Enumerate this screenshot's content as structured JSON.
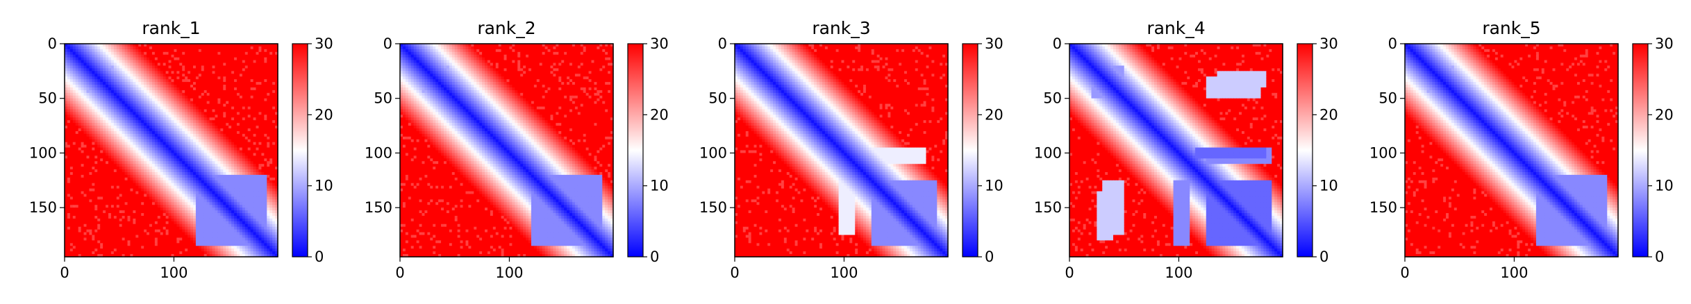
{
  "chart_data": [
    {
      "type": "heatmap",
      "title": "rank_1",
      "x_ticks": [
        0,
        100
      ],
      "y_ticks": [
        0,
        50,
        100,
        150
      ],
      "xlim": [
        0,
        195
      ],
      "ylim": [
        195,
        0
      ],
      "colorbar": {
        "ticks": [
          0,
          10,
          20,
          30
        ],
        "range": [
          0,
          30
        ],
        "colormap": "bwr"
      },
      "features": {
        "diagonal": true,
        "blocks": [
          [
            20,
            45,
            20,
            45,
            10
          ],
          [
            120,
            185,
            125,
            185,
            8
          ]
        ],
        "bands": []
      }
    },
    {
      "type": "heatmap",
      "title": "rank_2",
      "x_ticks": [
        0,
        100
      ],
      "y_ticks": [
        0,
        50,
        100,
        150
      ],
      "xlim": [
        0,
        195
      ],
      "ylim": [
        195,
        0
      ],
      "colorbar": {
        "ticks": [
          0,
          10,
          20,
          30
        ],
        "range": [
          0,
          30
        ],
        "colormap": "bwr"
      },
      "features": {
        "diagonal": true,
        "blocks": [
          [
            20,
            45,
            20,
            45,
            10
          ],
          [
            120,
            185,
            125,
            185,
            8
          ]
        ],
        "bands": []
      }
    },
    {
      "type": "heatmap",
      "title": "rank_3",
      "x_ticks": [
        0,
        100
      ],
      "y_ticks": [
        0,
        50,
        100,
        150
      ],
      "xlim": [
        0,
        195
      ],
      "ylim": [
        195,
        0
      ],
      "colorbar": {
        "ticks": [
          0,
          10,
          20,
          30
        ],
        "range": [
          0,
          30
        ],
        "colormap": "bwr"
      },
      "features": {
        "diagonal": true,
        "blocks": [
          [
            25,
            45,
            25,
            45,
            11
          ],
          [
            125,
            185,
            125,
            185,
            8
          ],
          [
            95,
            110,
            125,
            175,
            14
          ]
        ],
        "bands": []
      }
    },
    {
      "type": "heatmap",
      "title": "rank_4",
      "x_ticks": [
        0,
        100
      ],
      "y_ticks": [
        0,
        50,
        100,
        150
      ],
      "xlim": [
        0,
        195
      ],
      "ylim": [
        195,
        0
      ],
      "colorbar": {
        "ticks": [
          0,
          10,
          20,
          30
        ],
        "range": [
          0,
          30
        ],
        "colormap": "bwr"
      },
      "features": {
        "diagonal": true,
        "blocks": [
          [
            20,
            50,
            20,
            50,
            9
          ],
          [
            125,
            185,
            125,
            185,
            6
          ],
          [
            95,
            110,
            125,
            185,
            8
          ],
          [
            30,
            50,
            125,
            175,
            12
          ],
          [
            135,
            180,
            25,
            40,
            12
          ]
        ],
        "bands": [
          [
            115,
            180,
            96,
            104,
            6
          ]
        ]
      }
    },
    {
      "type": "heatmap",
      "title": "rank_5",
      "x_ticks": [
        0,
        100
      ],
      "y_ticks": [
        0,
        50,
        100,
        150
      ],
      "xlim": [
        0,
        195
      ],
      "ylim": [
        195,
        0
      ],
      "colorbar": {
        "ticks": [
          0,
          10,
          20,
          30
        ],
        "range": [
          0,
          30
        ],
        "colormap": "bwr"
      },
      "features": {
        "diagonal": true,
        "blocks": [
          [
            20,
            45,
            20,
            45,
            10
          ],
          [
            120,
            185,
            125,
            185,
            8
          ]
        ],
        "bands": []
      }
    }
  ]
}
